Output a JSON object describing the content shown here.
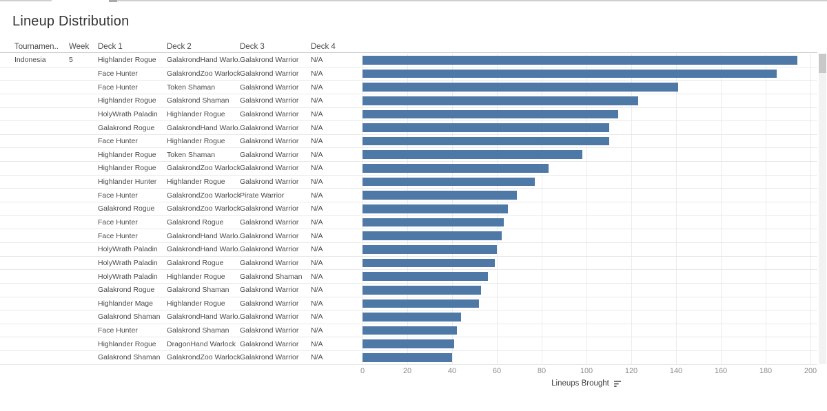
{
  "title": "Lineup Distribution",
  "table": {
    "headers": [
      "Tournamen..",
      "Week",
      "Deck 1",
      "Deck 2",
      "Deck 3",
      "Deck 4"
    ],
    "tournament": "Indonesia",
    "week": "5",
    "rows": [
      {
        "deck1": "Highlander Rogue",
        "deck2": "GalakrondHand Warlo..",
        "deck3": "Galakrond Warrior",
        "deck4": "N/A",
        "value": 194
      },
      {
        "deck1": "Face Hunter",
        "deck2": "GalakrondZoo Warlock",
        "deck3": "Galakrond Warrior",
        "deck4": "N/A",
        "value": 185
      },
      {
        "deck1": "Face Hunter",
        "deck2": "Token Shaman",
        "deck3": "Galakrond Warrior",
        "deck4": "N/A",
        "value": 141
      },
      {
        "deck1": "Highlander Rogue",
        "deck2": "Galakrond Shaman",
        "deck3": "Galakrond Warrior",
        "deck4": "N/A",
        "value": 123
      },
      {
        "deck1": "HolyWrath Paladin",
        "deck2": "Highlander Rogue",
        "deck3": "Galakrond Warrior",
        "deck4": "N/A",
        "value": 114
      },
      {
        "deck1": "Galakrond Rogue",
        "deck2": "GalakrondHand Warlo..",
        "deck3": "Galakrond Warrior",
        "deck4": "N/A",
        "value": 110
      },
      {
        "deck1": "Face Hunter",
        "deck2": "Highlander Rogue",
        "deck3": "Galakrond Warrior",
        "deck4": "N/A",
        "value": 110
      },
      {
        "deck1": "Highlander Rogue",
        "deck2": "Token Shaman",
        "deck3": "Galakrond Warrior",
        "deck4": "N/A",
        "value": 98
      },
      {
        "deck1": "Highlander Rogue",
        "deck2": "GalakrondZoo Warlock",
        "deck3": "Galakrond Warrior",
        "deck4": "N/A",
        "value": 83
      },
      {
        "deck1": "Highlander Hunter",
        "deck2": "Highlander Rogue",
        "deck3": "Galakrond Warrior",
        "deck4": "N/A",
        "value": 77
      },
      {
        "deck1": "Face Hunter",
        "deck2": "GalakrondZoo Warlock",
        "deck3": "Pirate Warrior",
        "deck4": "N/A",
        "value": 69
      },
      {
        "deck1": "Galakrond Rogue",
        "deck2": "GalakrondZoo Warlock",
        "deck3": "Galakrond Warrior",
        "deck4": "N/A",
        "value": 65
      },
      {
        "deck1": "Face Hunter",
        "deck2": "Galakrond Rogue",
        "deck3": "Galakrond Warrior",
        "deck4": "N/A",
        "value": 63
      },
      {
        "deck1": "Face Hunter",
        "deck2": "GalakrondHand Warlo..",
        "deck3": "Galakrond Warrior",
        "deck4": "N/A",
        "value": 62
      },
      {
        "deck1": "HolyWrath Paladin",
        "deck2": "GalakrondHand Warlo..",
        "deck3": "Galakrond Warrior",
        "deck4": "N/A",
        "value": 60
      },
      {
        "deck1": "HolyWrath Paladin",
        "deck2": "Galakrond Rogue",
        "deck3": "Galakrond Warrior",
        "deck4": "N/A",
        "value": 59
      },
      {
        "deck1": "HolyWrath Paladin",
        "deck2": "Highlander Rogue",
        "deck3": "Galakrond Shaman",
        "deck4": "N/A",
        "value": 56
      },
      {
        "deck1": "Galakrond Rogue",
        "deck2": "Galakrond Shaman",
        "deck3": "Galakrond Warrior",
        "deck4": "N/A",
        "value": 53
      },
      {
        "deck1": "Highlander Mage",
        "deck2": "Highlander Rogue",
        "deck3": "Galakrond Warrior",
        "deck4": "N/A",
        "value": 52
      },
      {
        "deck1": "Galakrond Shaman",
        "deck2": "GalakrondHand Warlo..",
        "deck3": "Galakrond Warrior",
        "deck4": "N/A",
        "value": 44
      },
      {
        "deck1": "Face Hunter",
        "deck2": "Galakrond Shaman",
        "deck3": "Galakrond Warrior",
        "deck4": "N/A",
        "value": 42
      },
      {
        "deck1": "Highlander Rogue",
        "deck2": "DragonHand Warlock",
        "deck3": "Galakrond Warrior",
        "deck4": "N/A",
        "value": 41
      },
      {
        "deck1": "Galakrond Shaman",
        "deck2": "GalakrondZoo Warlock",
        "deck3": "Galakrond Warrior",
        "deck4": "N/A",
        "value": 40
      }
    ]
  },
  "chart_data": {
    "type": "bar",
    "orientation": "horizontal",
    "title": "Lineup Distribution",
    "xlabel": "Lineups Brought",
    "xlim": [
      0,
      200
    ],
    "x_ticks": [
      0,
      20,
      40,
      60,
      80,
      100,
      120,
      140,
      160,
      180,
      200
    ],
    "grid": true,
    "sort": "descending",
    "categories": [
      "Highlander Rogue / GalakrondHand Warlo.. / Galakrond Warrior / N/A",
      "Face Hunter / GalakrondZoo Warlock / Galakrond Warrior / N/A",
      "Face Hunter / Token Shaman / Galakrond Warrior / N/A",
      "Highlander Rogue / Galakrond Shaman / Galakrond Warrior / N/A",
      "HolyWrath Paladin / Highlander Rogue / Galakrond Warrior / N/A",
      "Galakrond Rogue / GalakrondHand Warlo.. / Galakrond Warrior / N/A",
      "Face Hunter / Highlander Rogue / Galakrond Warrior / N/A",
      "Highlander Rogue / Token Shaman / Galakrond Warrior / N/A",
      "Highlander Rogue / GalakrondZoo Warlock / Galakrond Warrior / N/A",
      "Highlander Hunter / Highlander Rogue / Galakrond Warrior / N/A",
      "Face Hunter / GalakrondZoo Warlock / Pirate Warrior / N/A",
      "Galakrond Rogue / GalakrondZoo Warlock / Galakrond Warrior / N/A",
      "Face Hunter / Galakrond Rogue / Galakrond Warrior / N/A",
      "Face Hunter / GalakrondHand Warlo.. / Galakrond Warrior / N/A",
      "HolyWrath Paladin / GalakrondHand Warlo.. / Galakrond Warrior / N/A",
      "HolyWrath Paladin / Galakrond Rogue / Galakrond Warrior / N/A",
      "HolyWrath Paladin / Highlander Rogue / Galakrond Shaman / N/A",
      "Galakrond Rogue / Galakrond Shaman / Galakrond Warrior / N/A",
      "Highlander Mage / Highlander Rogue / Galakrond Warrior / N/A",
      "Galakrond Shaman / GalakrondHand Warlo.. / Galakrond Warrior / N/A",
      "Face Hunter / Galakrond Shaman / Galakrond Warrior / N/A",
      "Highlander Rogue / DragonHand Warlock / Galakrond Warrior / N/A",
      "Galakrond Shaman / GalakrondZoo Warlock / Galakrond Warrior / N/A"
    ],
    "values": [
      194,
      185,
      141,
      123,
      114,
      110,
      110,
      98,
      83,
      77,
      69,
      65,
      63,
      62,
      60,
      59,
      56,
      53,
      52,
      44,
      42,
      41,
      40
    ]
  },
  "colors": {
    "bar": "#4e79a7",
    "grid_line": "#ececec",
    "row_border": "#e8e8e8",
    "tick_label": "#8c8c8c"
  }
}
